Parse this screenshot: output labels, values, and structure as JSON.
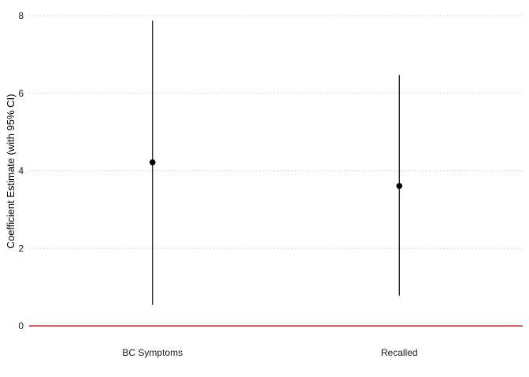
{
  "chart_data": {
    "type": "scatter",
    "subtype": "point-range",
    "title": "",
    "xlabel": "",
    "ylabel": "Coefficient Estimate (with 95% CI)",
    "categories": [
      "BC Symptoms",
      "Recalled"
    ],
    "series": [
      {
        "estimates": [
          4.22,
          3.61
        ],
        "ci_lower": [
          0.55,
          0.78
        ],
        "ci_upper": [
          7.87,
          6.47
        ]
      }
    ],
    "ylim": [
      0,
      8
    ],
    "yticks": [
      0,
      2,
      4,
      6,
      8
    ],
    "grid": {
      "horizontal": true,
      "vertical": false,
      "style": "dotted"
    },
    "reference_line": {
      "y": 0,
      "color": "#cc0000"
    },
    "point_color": "#000000"
  }
}
